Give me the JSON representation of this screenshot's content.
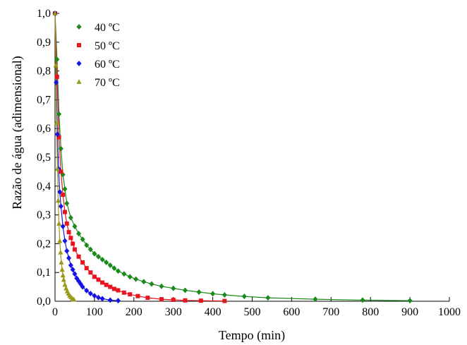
{
  "chart_data": {
    "type": "scatter",
    "xlabel": "Tempo (min)",
    "ylabel": "Razão de água (adimensional)",
    "xlim": [
      0,
      1000
    ],
    "ylim": [
      0,
      1.0
    ],
    "xticks": [
      0,
      100,
      200,
      300,
      400,
      500,
      600,
      700,
      800,
      900,
      1000
    ],
    "xtick_labels": [
      "0",
      "100",
      "200",
      "300",
      "400",
      "500",
      "600",
      "700",
      "800",
      "900",
      "1000"
    ],
    "yticks": [
      0,
      0.1,
      0.2,
      0.3,
      0.4,
      0.5,
      0.6,
      0.7,
      0.8,
      0.9,
      1.0
    ],
    "ytick_labels": [
      "0,0",
      "0,1",
      "0,2",
      "0,3",
      "0,4",
      "0,5",
      "0,6",
      "0,7",
      "0,8",
      "0,9",
      "1,0"
    ],
    "grid": false,
    "legend_position": "top-left",
    "series": [
      {
        "name": "40 ºC",
        "color": "#1a8a1a",
        "marker": "diamond",
        "x": [
          0,
          5,
          10,
          15,
          20,
          25,
          30,
          40,
          50,
          60,
          70,
          80,
          90,
          100,
          110,
          120,
          130,
          140,
          150,
          160,
          175,
          190,
          205,
          225,
          245,
          270,
          300,
          330,
          365,
          400,
          430,
          480,
          540,
          660,
          780,
          900
        ],
        "y": [
          1.0,
          0.84,
          0.65,
          0.53,
          0.44,
          0.39,
          0.34,
          0.29,
          0.26,
          0.235,
          0.215,
          0.195,
          0.18,
          0.165,
          0.155,
          0.145,
          0.135,
          0.125,
          0.115,
          0.105,
          0.095,
          0.085,
          0.077,
          0.068,
          0.06,
          0.052,
          0.045,
          0.038,
          0.032,
          0.026,
          0.022,
          0.017,
          0.012,
          0.007,
          0.004,
          0.002
        ]
      },
      {
        "name": "50 ºC",
        "color": "#e8141e",
        "marker": "square",
        "x": [
          0,
          5,
          10,
          15,
          20,
          25,
          30,
          35,
          40,
          45,
          50,
          60,
          70,
          80,
          90,
          100,
          110,
          120,
          130,
          140,
          150,
          160,
          175,
          190,
          210,
          235,
          270,
          300,
          330,
          370,
          430
        ],
        "y": [
          1.0,
          0.78,
          0.57,
          0.45,
          0.37,
          0.31,
          0.27,
          0.24,
          0.22,
          0.2,
          0.18,
          0.155,
          0.135,
          0.115,
          0.1,
          0.085,
          0.075,
          0.065,
          0.057,
          0.05,
          0.043,
          0.038,
          0.03,
          0.024,
          0.018,
          0.012,
          0.007,
          0.005,
          0.003,
          0.002,
          0.001
        ]
      },
      {
        "name": "60 ºC",
        "color": "#1414e6",
        "marker": "diamond",
        "x": [
          0,
          3,
          6,
          9,
          12,
          15,
          20,
          25,
          30,
          35,
          40,
          45,
          50,
          55,
          60,
          65,
          70,
          80,
          90,
          100,
          110,
          120,
          140,
          160
        ],
        "y": [
          1.0,
          0.76,
          0.58,
          0.46,
          0.38,
          0.33,
          0.26,
          0.21,
          0.175,
          0.15,
          0.125,
          0.11,
          0.095,
          0.08,
          0.07,
          0.06,
          0.05,
          0.037,
          0.027,
          0.019,
          0.013,
          0.009,
          0.004,
          0.002
        ]
      },
      {
        "name": "70 ºC",
        "color": "#9a9a1a",
        "marker": "triangle",
        "x": [
          0,
          2,
          4,
          6,
          8,
          10,
          12,
          14,
          16,
          18,
          20,
          22,
          25,
          28,
          31,
          34,
          37,
          40,
          44,
          48
        ],
        "y": [
          1.0,
          0.82,
          0.62,
          0.46,
          0.35,
          0.27,
          0.21,
          0.17,
          0.135,
          0.11,
          0.09,
          0.075,
          0.058,
          0.045,
          0.035,
          0.027,
          0.02,
          0.015,
          0.01,
          0.006
        ]
      }
    ]
  }
}
